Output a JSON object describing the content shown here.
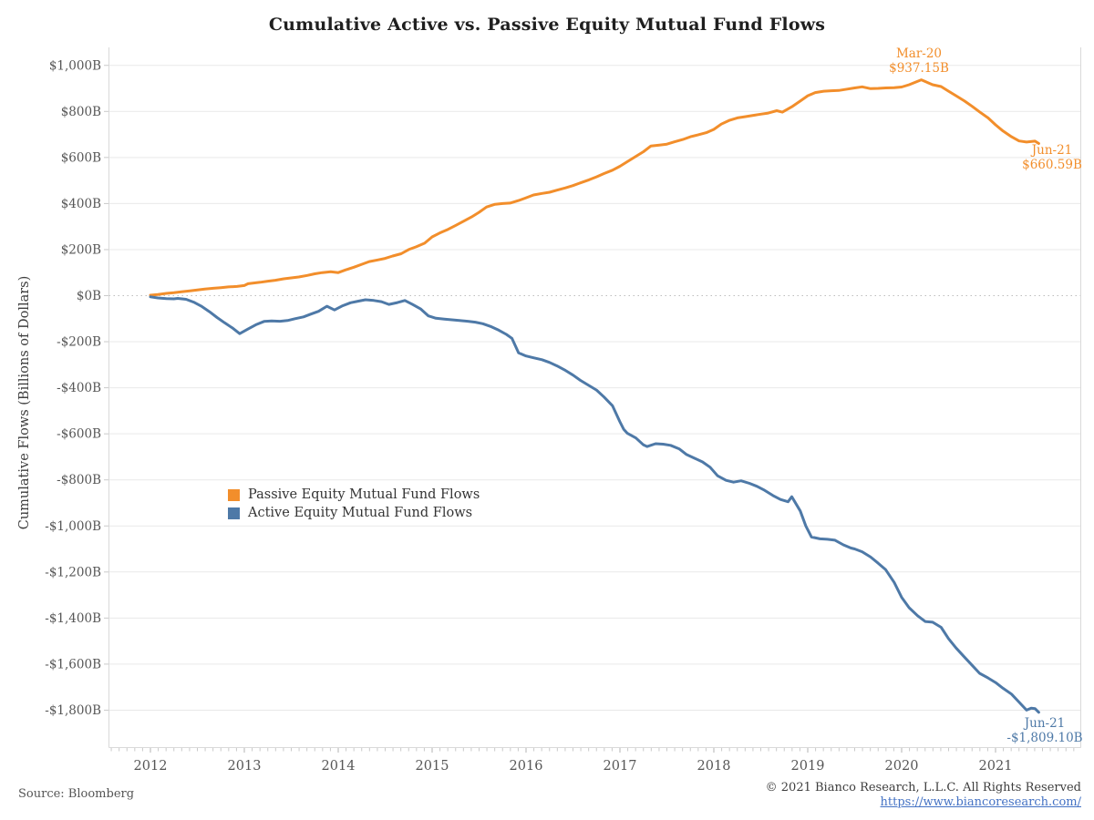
{
  "title": "Cumulative Active vs. Passive Equity Mutual Fund Flows",
  "y_axis": {
    "title": "Cumulative Flows (Billions of Dollars)"
  },
  "legend": {
    "items": [
      {
        "label": "Passive Equity Mutual Fund Flows",
        "color": "#f28e2b"
      },
      {
        "label": "Active Equity Mutual Fund Flows",
        "color": "#4e79a7"
      }
    ]
  },
  "annotations": {
    "mar20_passive": {
      "line1": "Mar-20",
      "line2": "$937.15B",
      "t": 2020.21,
      "value": 937.15
    },
    "jun21_passive": {
      "line1": "Jun-21",
      "line2": "$660.59B",
      "t": 2021.46,
      "value": 660.59
    },
    "jun21_active": {
      "line1": "Jun-21",
      "line2": "-$1,809.10B",
      "t": 2021.46,
      "value": -1809.1
    }
  },
  "footer": {
    "source": "Source: Bloomberg",
    "copyright": "© 2021 Bianco Research, L.L.C. All Rights Reserved",
    "link_text": "https://www.biancoresearch.com/"
  },
  "colors": {
    "passive": "#f28e2b",
    "active": "#4e79a7",
    "grid": "#e9e9e9",
    "zero_line": "#bdbdbd",
    "border": "#d9d9d9",
    "tick": "#c9c9c9",
    "axis_text": "#565656",
    "link": "#4472c4"
  },
  "chart_data": {
    "type": "line",
    "title": "Cumulative Active vs. Passive Equity Mutual Fund Flows",
    "xlabel": "",
    "ylabel": "Cumulative Flows (Billions of Dollars)",
    "x_range": [
      2011.56,
      2021.9
    ],
    "ylim": [
      -1960,
      1060
    ],
    "grid": true,
    "legend_position": "inside-left-middle",
    "y_ticks": [
      {
        "value": 1000,
        "label": "$1,000B"
      },
      {
        "value": 800,
        "label": "$800B"
      },
      {
        "value": 600,
        "label": "$600B"
      },
      {
        "value": 400,
        "label": "$400B"
      },
      {
        "value": 200,
        "label": "$200B"
      },
      {
        "value": 0,
        "label": "$0B"
      },
      {
        "value": -200,
        "label": "-$200B"
      },
      {
        "value": -400,
        "label": "-$400B"
      },
      {
        "value": -600,
        "label": "-$600B"
      },
      {
        "value": -800,
        "label": "-$800B"
      },
      {
        "value": -1000,
        "label": "-$1,000B"
      },
      {
        "value": -1200,
        "label": "-$1,200B"
      },
      {
        "value": -1400,
        "label": "-$1,400B"
      },
      {
        "value": -1600,
        "label": "-$1,600B"
      },
      {
        "value": -1800,
        "label": "-$1,800B"
      }
    ],
    "x_ticks": [
      {
        "t": 2012,
        "label": "2012"
      },
      {
        "t": 2013,
        "label": "2013"
      },
      {
        "t": 2014,
        "label": "2014"
      },
      {
        "t": 2015,
        "label": "2015"
      },
      {
        "t": 2016,
        "label": "2016"
      },
      {
        "t": 2017,
        "label": "2017"
      },
      {
        "t": 2018,
        "label": "2018"
      },
      {
        "t": 2019,
        "label": "2019"
      },
      {
        "t": 2020,
        "label": "2020"
      },
      {
        "t": 2021,
        "label": "2021"
      }
    ],
    "series": [
      {
        "name": "Passive Equity Mutual Fund Flows",
        "color": "#f28e2b",
        "points": [
          [
            2012.0,
            2
          ],
          [
            2012.08,
            5
          ],
          [
            2012.17,
            10
          ],
          [
            2012.25,
            13
          ],
          [
            2012.33,
            17
          ],
          [
            2012.42,
            21
          ],
          [
            2012.5,
            25
          ],
          [
            2012.58,
            29
          ],
          [
            2012.67,
            32
          ],
          [
            2012.75,
            35
          ],
          [
            2012.83,
            38
          ],
          [
            2012.92,
            40
          ],
          [
            2013.0,
            44
          ],
          [
            2013.04,
            52
          ],
          [
            2013.17,
            58
          ],
          [
            2013.25,
            63
          ],
          [
            2013.33,
            67
          ],
          [
            2013.42,
            73
          ],
          [
            2013.5,
            77
          ],
          [
            2013.58,
            81
          ],
          [
            2013.67,
            88
          ],
          [
            2013.75,
            95
          ],
          [
            2013.83,
            100
          ],
          [
            2013.92,
            104
          ],
          [
            2014.0,
            100
          ],
          [
            2014.08,
            112
          ],
          [
            2014.17,
            124
          ],
          [
            2014.25,
            136
          ],
          [
            2014.33,
            148
          ],
          [
            2014.42,
            155
          ],
          [
            2014.5,
            162
          ],
          [
            2014.58,
            172
          ],
          [
            2014.67,
            182
          ],
          [
            2014.75,
            200
          ],
          [
            2014.83,
            212
          ],
          [
            2014.92,
            228
          ],
          [
            2015.0,
            255
          ],
          [
            2015.08,
            272
          ],
          [
            2015.17,
            288
          ],
          [
            2015.25,
            305
          ],
          [
            2015.33,
            322
          ],
          [
            2015.42,
            342
          ],
          [
            2015.5,
            362
          ],
          [
            2015.58,
            385
          ],
          [
            2015.67,
            397
          ],
          [
            2015.75,
            400
          ],
          [
            2015.83,
            402
          ],
          [
            2015.92,
            413
          ],
          [
            2016.0,
            425
          ],
          [
            2016.08,
            437
          ],
          [
            2016.17,
            444
          ],
          [
            2016.25,
            449
          ],
          [
            2016.33,
            458
          ],
          [
            2016.42,
            468
          ],
          [
            2016.5,
            478
          ],
          [
            2016.58,
            490
          ],
          [
            2016.67,
            503
          ],
          [
            2016.75,
            516
          ],
          [
            2016.83,
            530
          ],
          [
            2016.92,
            545
          ],
          [
            2017.0,
            562
          ],
          [
            2017.08,
            582
          ],
          [
            2017.17,
            605
          ],
          [
            2017.25,
            625
          ],
          [
            2017.33,
            650
          ],
          [
            2017.42,
            654
          ],
          [
            2017.5,
            658
          ],
          [
            2017.58,
            668
          ],
          [
            2017.67,
            678
          ],
          [
            2017.75,
            690
          ],
          [
            2017.83,
            698
          ],
          [
            2017.92,
            708
          ],
          [
            2018.0,
            722
          ],
          [
            2018.08,
            745
          ],
          [
            2018.17,
            762
          ],
          [
            2018.25,
            772
          ],
          [
            2018.33,
            777
          ],
          [
            2018.42,
            783
          ],
          [
            2018.5,
            788
          ],
          [
            2018.58,
            793
          ],
          [
            2018.67,
            803
          ],
          [
            2018.73,
            797
          ],
          [
            2018.83,
            820
          ],
          [
            2018.92,
            845
          ],
          [
            2019.0,
            868
          ],
          [
            2019.08,
            882
          ],
          [
            2019.17,
            888
          ],
          [
            2019.25,
            890
          ],
          [
            2019.33,
            891
          ],
          [
            2019.42,
            897
          ],
          [
            2019.5,
            902
          ],
          [
            2019.58,
            907
          ],
          [
            2019.67,
            899
          ],
          [
            2019.75,
            900
          ],
          [
            2019.83,
            902
          ],
          [
            2019.92,
            903
          ],
          [
            2020.0,
            906
          ],
          [
            2020.08,
            916
          ],
          [
            2020.21,
            937.15
          ],
          [
            2020.33,
            916
          ],
          [
            2020.42,
            908
          ],
          [
            2020.5,
            888
          ],
          [
            2020.58,
            868
          ],
          [
            2020.67,
            845
          ],
          [
            2020.75,
            822
          ],
          [
            2020.83,
            798
          ],
          [
            2020.92,
            772
          ],
          [
            2021.0,
            742
          ],
          [
            2021.08,
            715
          ],
          [
            2021.17,
            690
          ],
          [
            2021.25,
            672
          ],
          [
            2021.33,
            667
          ],
          [
            2021.42,
            671
          ],
          [
            2021.46,
            660.59
          ]
        ]
      },
      {
        "name": "Active Equity Mutual Fund Flows",
        "color": "#4e79a7",
        "points": [
          [
            2012.0,
            -5
          ],
          [
            2012.08,
            -10
          ],
          [
            2012.17,
            -13
          ],
          [
            2012.25,
            -14
          ],
          [
            2012.29,
            -12
          ],
          [
            2012.38,
            -16
          ],
          [
            2012.46,
            -28
          ],
          [
            2012.54,
            -45
          ],
          [
            2012.63,
            -70
          ],
          [
            2012.71,
            -95
          ],
          [
            2012.79,
            -118
          ],
          [
            2012.88,
            -142
          ],
          [
            2012.95,
            -165
          ],
          [
            2013.04,
            -145
          ],
          [
            2013.13,
            -125
          ],
          [
            2013.21,
            -112
          ],
          [
            2013.29,
            -110
          ],
          [
            2013.38,
            -111
          ],
          [
            2013.46,
            -108
          ],
          [
            2013.54,
            -100
          ],
          [
            2013.63,
            -92
          ],
          [
            2013.71,
            -80
          ],
          [
            2013.79,
            -68
          ],
          [
            2013.88,
            -46
          ],
          [
            2013.96,
            -62
          ],
          [
            2014.04,
            -45
          ],
          [
            2014.13,
            -31
          ],
          [
            2014.21,
            -24
          ],
          [
            2014.29,
            -18
          ],
          [
            2014.38,
            -21
          ],
          [
            2014.46,
            -26
          ],
          [
            2014.54,
            -38
          ],
          [
            2014.63,
            -30
          ],
          [
            2014.71,
            -21
          ],
          [
            2014.79,
            -38
          ],
          [
            2014.88,
            -58
          ],
          [
            2014.96,
            -88
          ],
          [
            2015.04,
            -98
          ],
          [
            2015.13,
            -102
          ],
          [
            2015.21,
            -105
          ],
          [
            2015.29,
            -108
          ],
          [
            2015.38,
            -111
          ],
          [
            2015.46,
            -115
          ],
          [
            2015.54,
            -122
          ],
          [
            2015.63,
            -135
          ],
          [
            2015.71,
            -150
          ],
          [
            2015.79,
            -168
          ],
          [
            2015.85,
            -185
          ],
          [
            2015.92,
            -248
          ],
          [
            2016.0,
            -262
          ],
          [
            2016.08,
            -270
          ],
          [
            2016.17,
            -278
          ],
          [
            2016.25,
            -290
          ],
          [
            2016.33,
            -305
          ],
          [
            2016.42,
            -325
          ],
          [
            2016.5,
            -345
          ],
          [
            2016.58,
            -368
          ],
          [
            2016.67,
            -390
          ],
          [
            2016.75,
            -410
          ],
          [
            2016.83,
            -440
          ],
          [
            2016.92,
            -478
          ],
          [
            2017.0,
            -548
          ],
          [
            2017.04,
            -580
          ],
          [
            2017.08,
            -598
          ],
          [
            2017.17,
            -618
          ],
          [
            2017.25,
            -648
          ],
          [
            2017.29,
            -655
          ],
          [
            2017.38,
            -643
          ],
          [
            2017.46,
            -645
          ],
          [
            2017.54,
            -650
          ],
          [
            2017.63,
            -665
          ],
          [
            2017.71,
            -690
          ],
          [
            2017.79,
            -705
          ],
          [
            2017.88,
            -722
          ],
          [
            2017.96,
            -745
          ],
          [
            2018.04,
            -782
          ],
          [
            2018.13,
            -802
          ],
          [
            2018.21,
            -810
          ],
          [
            2018.29,
            -804
          ],
          [
            2018.38,
            -815
          ],
          [
            2018.46,
            -828
          ],
          [
            2018.54,
            -845
          ],
          [
            2018.63,
            -868
          ],
          [
            2018.71,
            -885
          ],
          [
            2018.79,
            -895
          ],
          [
            2018.83,
            -873
          ],
          [
            2018.92,
            -935
          ],
          [
            2018.98,
            -1000
          ],
          [
            2019.04,
            -1048
          ],
          [
            2019.13,
            -1056
          ],
          [
            2019.21,
            -1058
          ],
          [
            2019.29,
            -1062
          ],
          [
            2019.38,
            -1082
          ],
          [
            2019.46,
            -1096
          ],
          [
            2019.5,
            -1100
          ],
          [
            2019.58,
            -1112
          ],
          [
            2019.67,
            -1135
          ],
          [
            2019.75,
            -1162
          ],
          [
            2019.83,
            -1190
          ],
          [
            2019.92,
            -1245
          ],
          [
            2020.0,
            -1310
          ],
          [
            2020.08,
            -1355
          ],
          [
            2020.17,
            -1390
          ],
          [
            2020.25,
            -1415
          ],
          [
            2020.33,
            -1418
          ],
          [
            2020.42,
            -1440
          ],
          [
            2020.5,
            -1490
          ],
          [
            2020.58,
            -1530
          ],
          [
            2020.67,
            -1570
          ],
          [
            2020.75,
            -1605
          ],
          [
            2020.83,
            -1640
          ],
          [
            2020.92,
            -1660
          ],
          [
            2021.0,
            -1680
          ],
          [
            2021.08,
            -1705
          ],
          [
            2021.17,
            -1730
          ],
          [
            2021.25,
            -1765
          ],
          [
            2021.33,
            -1800
          ],
          [
            2021.38,
            -1791
          ],
          [
            2021.42,
            -1793
          ],
          [
            2021.46,
            -1809.1
          ]
        ]
      }
    ]
  }
}
